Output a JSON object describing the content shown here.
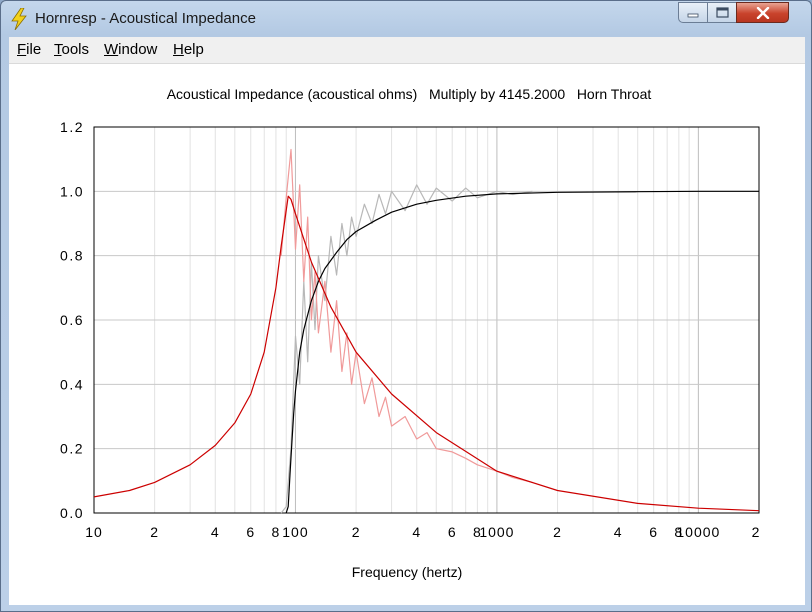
{
  "window": {
    "title": "Hornresp - Acoustical Impedance"
  },
  "menu": [
    {
      "key": "F",
      "rest": "ile"
    },
    {
      "key": "T",
      "rest": "ools"
    },
    {
      "key": "W",
      "rest": "indow"
    },
    {
      "key": "H",
      "rest": "elp"
    }
  ],
  "chart_data": {
    "type": "line",
    "title": "Acoustical Impedance (acoustical ohms)   Multiply by 4145.2000   Horn Throat",
    "xlabel": "Frequency (hertz)",
    "ylabel": "",
    "x_scale": "log",
    "xlim": [
      10,
      20000
    ],
    "ylim": [
      0,
      1.2
    ],
    "grid": true,
    "y_ticks": [
      "0.0",
      "0.2",
      "0.4",
      "0.6",
      "0.8",
      "1.0",
      "1.2"
    ],
    "y_tick_values": [
      0,
      0.2,
      0.4,
      0.6,
      0.8,
      1.0,
      1.2
    ],
    "x_ticks": [
      {
        "value": 10,
        "label": "10"
      },
      {
        "value": 20,
        "label": "2"
      },
      {
        "value": 40,
        "label": "4"
      },
      {
        "value": 60,
        "label": "6"
      },
      {
        "value": 80,
        "label": "8"
      },
      {
        "value": 100,
        "label": "100"
      },
      {
        "value": 200,
        "label": "2"
      },
      {
        "value": 400,
        "label": "4"
      },
      {
        "value": 600,
        "label": "6"
      },
      {
        "value": 800,
        "label": "8"
      },
      {
        "value": 1000,
        "label": "1000"
      },
      {
        "value": 2000,
        "label": "2"
      },
      {
        "value": 4000,
        "label": "4"
      },
      {
        "value": 6000,
        "label": "6"
      },
      {
        "value": 8000,
        "label": "8"
      },
      {
        "value": 10000,
        "label": "10000"
      },
      {
        "value": 20000,
        "label": "2"
      }
    ],
    "series": [
      {
        "color": "#000000",
        "x": [
          90,
          92,
          94,
          96,
          98,
          100,
          105,
          110,
          120,
          130,
          140,
          160,
          180,
          200,
          250,
          300,
          400,
          500,
          700,
          1000,
          2000,
          5000,
          10000,
          20000
        ],
        "y": [
          0.0,
          0.02,
          0.12,
          0.22,
          0.31,
          0.38,
          0.5,
          0.57,
          0.66,
          0.72,
          0.76,
          0.81,
          0.85,
          0.875,
          0.91,
          0.935,
          0.96,
          0.972,
          0.985,
          0.992,
          0.997,
          0.999,
          1.0,
          1.0
        ]
      },
      {
        "color": "#cc0000",
        "x": [
          10,
          15,
          20,
          30,
          40,
          50,
          60,
          70,
          80,
          85,
          90,
          92,
          95,
          100,
          120,
          150,
          200,
          300,
          500,
          1000,
          2000,
          5000,
          10000,
          20000
        ],
        "y": [
          0.05,
          0.07,
          0.095,
          0.15,
          0.21,
          0.28,
          0.37,
          0.5,
          0.7,
          0.83,
          0.94,
          0.985,
          0.975,
          0.93,
          0.78,
          0.64,
          0.5,
          0.37,
          0.25,
          0.13,
          0.07,
          0.03,
          0.015,
          0.007
        ]
      },
      {
        "color": "#b8b8b8",
        "x": [
          85,
          90,
          95,
          100,
          105,
          110,
          115,
          120,
          125,
          130,
          140,
          150,
          160,
          170,
          180,
          190,
          200,
          220,
          240,
          260,
          280,
          300,
          350,
          400,
          450,
          500,
          600,
          700,
          800,
          1000,
          1200,
          1500
        ],
        "y": [
          0.0,
          0.02,
          0.2,
          0.55,
          0.4,
          0.72,
          0.47,
          0.78,
          0.57,
          0.8,
          0.66,
          0.86,
          0.74,
          0.9,
          0.8,
          0.92,
          0.86,
          0.96,
          0.9,
          0.99,
          0.93,
          1.0,
          0.94,
          1.02,
          0.96,
          1.01,
          0.97,
          1.01,
          0.98,
          1.0,
          0.99,
          1.0
        ]
      },
      {
        "color": "#f09a9a",
        "x": [
          85,
          90,
          95,
          100,
          105,
          110,
          115,
          120,
          125,
          130,
          140,
          150,
          160,
          170,
          180,
          190,
          200,
          220,
          240,
          260,
          280,
          300,
          350,
          400,
          450,
          500,
          600,
          700,
          800,
          1000,
          1200,
          1500
        ],
        "y": [
          0.8,
          0.98,
          1.13,
          0.82,
          1.02,
          0.72,
          0.92,
          0.6,
          0.75,
          0.56,
          0.72,
          0.5,
          0.66,
          0.44,
          0.56,
          0.4,
          0.5,
          0.34,
          0.42,
          0.3,
          0.36,
          0.27,
          0.3,
          0.23,
          0.25,
          0.2,
          0.19,
          0.17,
          0.15,
          0.13,
          0.11,
          0.095
        ]
      }
    ]
  }
}
